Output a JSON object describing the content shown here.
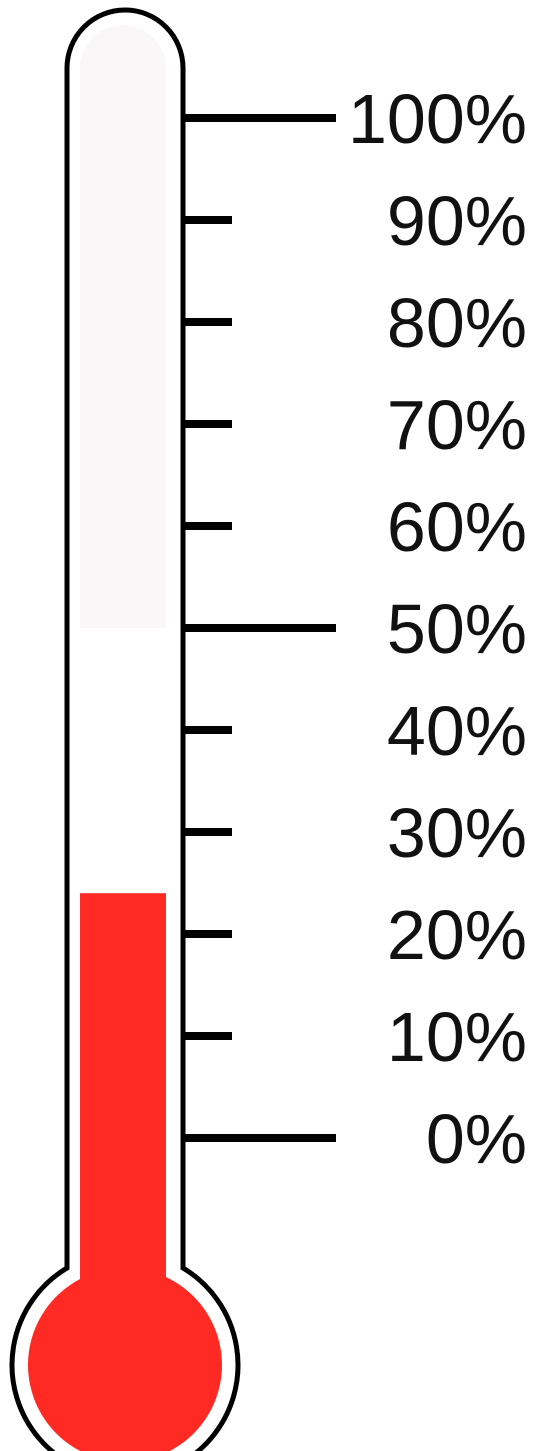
{
  "chart_data": {
    "type": "thermometer",
    "value": 24,
    "range": [
      0,
      100
    ],
    "unit": "%",
    "ticks": [
      {
        "value": 100,
        "label": "100%",
        "major": true
      },
      {
        "value": 90,
        "label": "90%",
        "major": false
      },
      {
        "value": 80,
        "label": "80%",
        "major": false
      },
      {
        "value": 70,
        "label": "70%",
        "major": false
      },
      {
        "value": 60,
        "label": "60%",
        "major": false
      },
      {
        "value": 50,
        "label": "50%",
        "major": true
      },
      {
        "value": 40,
        "label": "40%",
        "major": false
      },
      {
        "value": 30,
        "label": "30%",
        "major": false
      },
      {
        "value": 20,
        "label": "20%",
        "major": false
      },
      {
        "value": 10,
        "label": "10%",
        "major": false
      },
      {
        "value": 0,
        "label": "0%",
        "major": true
      }
    ],
    "colors": {
      "mercury": "#ff2a23",
      "tube_upper": "#f9f7f8",
      "tube_lower": "#ffffff",
      "outline": "#000000",
      "tick": "#000000",
      "label": "#111111"
    }
  }
}
